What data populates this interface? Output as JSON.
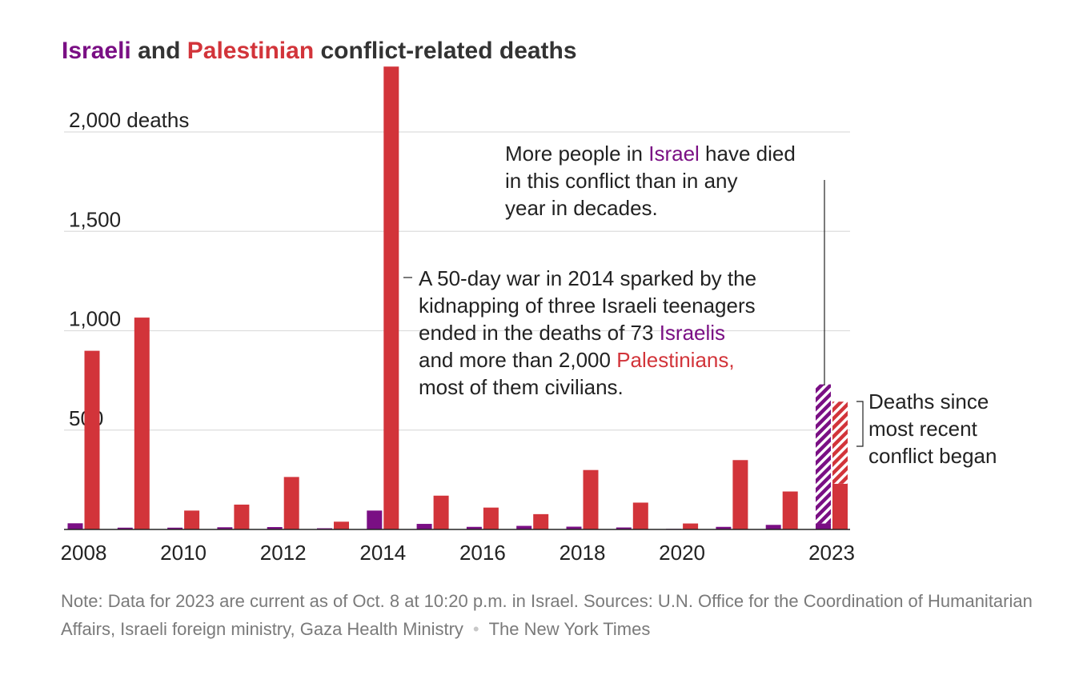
{
  "title": {
    "israeli": "Israeli",
    "and": " and ",
    "palestinian": "Palestinian",
    "rest": " conflict-related deaths"
  },
  "colors": {
    "israeli": "#7a0f84",
    "palestinian": "#d2343a",
    "grid": "#dddddd",
    "axis": "#222222"
  },
  "chart_data": {
    "type": "bar",
    "categories": [
      "2008",
      "2009",
      "2010",
      "2011",
      "2012",
      "2013",
      "2014",
      "2015",
      "2016",
      "2017",
      "2018",
      "2019",
      "2020",
      "2021",
      "2022",
      "2023"
    ],
    "x_tick_labels": [
      "2008",
      "2010",
      "2012",
      "2014",
      "2016",
      "2018",
      "2020",
      "2023"
    ],
    "y_ticks": [
      {
        "value": 500,
        "label": "500"
      },
      {
        "value": 1000,
        "label": "1,000"
      },
      {
        "value": 1500,
        "label": "1,500"
      },
      {
        "value": 2000,
        "label": "2,000 deaths"
      }
    ],
    "ylim": [
      0,
      2300
    ],
    "grid": true,
    "series": [
      {
        "name": "Israeli",
        "color": "#7a0f84",
        "values": [
          31,
          9,
          9,
          11,
          12,
          6,
          95,
          28,
          13,
          18,
          14,
          10,
          3,
          13,
          23,
          30
        ],
        "hatched_since_conflict": [
          0,
          0,
          0,
          0,
          0,
          0,
          0,
          0,
          0,
          0,
          0,
          0,
          0,
          0,
          0,
          700
        ]
      },
      {
        "name": "Palestinian",
        "color": "#d2343a",
        "values": [
          899,
          1066,
          95,
          125,
          264,
          39,
          2329,
          170,
          110,
          77,
          299,
          135,
          30,
          349,
          191,
          230
        ],
        "hatched_since_conflict": [
          0,
          0,
          0,
          0,
          0,
          0,
          0,
          0,
          0,
          0,
          0,
          0,
          0,
          0,
          0,
          413
        ]
      }
    ]
  },
  "annotations": {
    "war2014": [
      "A 50-day war in 2014 sparked by the",
      "kidnapping of three Israeli teenagers",
      "ended in the deaths of 73 ",
      "and more than 2,000 ",
      "most of them civilians."
    ],
    "war2014_isr": "Israelis",
    "war2014_pal": "Palestinians,",
    "israel2023": [
      "More people in ",
      " have died",
      "in this conflict than in any",
      "year in decades."
    ],
    "israel2023_isr": "Israel",
    "since": [
      "Deaths since",
      "most recent",
      "conflict began"
    ]
  },
  "footer": {
    "note": "Note: Data for 2023 are current as of Oct. 8 at 10:20 p.m. in Israel. Sources: U.N. Office for the Coordination of Humanitarian Affairs, Israeli foreign ministry, Gaza Health Ministry",
    "separator": "•",
    "credit": "The New York Times"
  }
}
